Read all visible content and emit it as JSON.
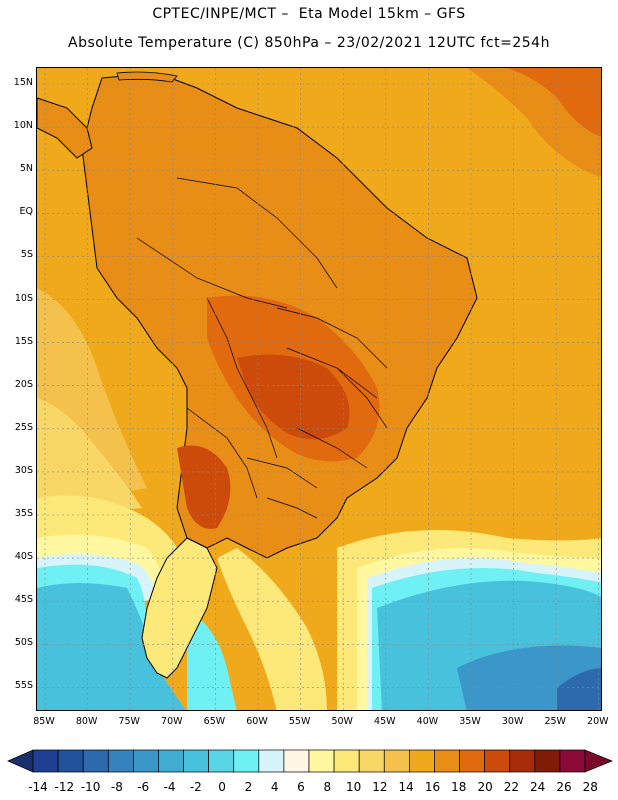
{
  "title_line1": "CPTEC/INPE/MCT –  Eta Model 15km – GFS",
  "title_line2": "Absolute Temperature (C) 850hPa – 23/02/2021 12UTC fct=254h",
  "lat_labels": [
    "15N",
    "10N",
    "5N",
    "EQ",
    "5S",
    "10S",
    "15S",
    "20S",
    "25S",
    "30S",
    "35S",
    "40S",
    "45S",
    "50S",
    "55S"
  ],
  "lon_labels": [
    "85W",
    "80W",
    "75W",
    "70W",
    "65W",
    "60W",
    "55W",
    "50W",
    "45W",
    "40W",
    "35W",
    "30W",
    "25W",
    "20W"
  ],
  "colorbar": {
    "labels": [
      "-14",
      "-12",
      "-10",
      "-8",
      "-6",
      "-4",
      "-2",
      "0",
      "2",
      "4",
      "6",
      "8",
      "10",
      "12",
      "14",
      "16",
      "18",
      "20",
      "22",
      "24",
      "26",
      "28"
    ],
    "colors": [
      "#1f3f93",
      "#21539d",
      "#2c69ad",
      "#3582bc",
      "#3b97c9",
      "#40acd2",
      "#47c1dc",
      "#59d6e6",
      "#6ff0f4",
      "#d6f4fa",
      "#fff7e6",
      "#fff8a0",
      "#fde97a",
      "#f9d766",
      "#f4c14c",
      "#efaa1c",
      "#e88d16",
      "#e1690e",
      "#cc4a0a",
      "#a62d08",
      "#7f1b07",
      "#8c0a3a"
    ],
    "left_arrow_color": "#1a2f6e",
    "right_arrow_color": "#7a0a2a"
  }
}
